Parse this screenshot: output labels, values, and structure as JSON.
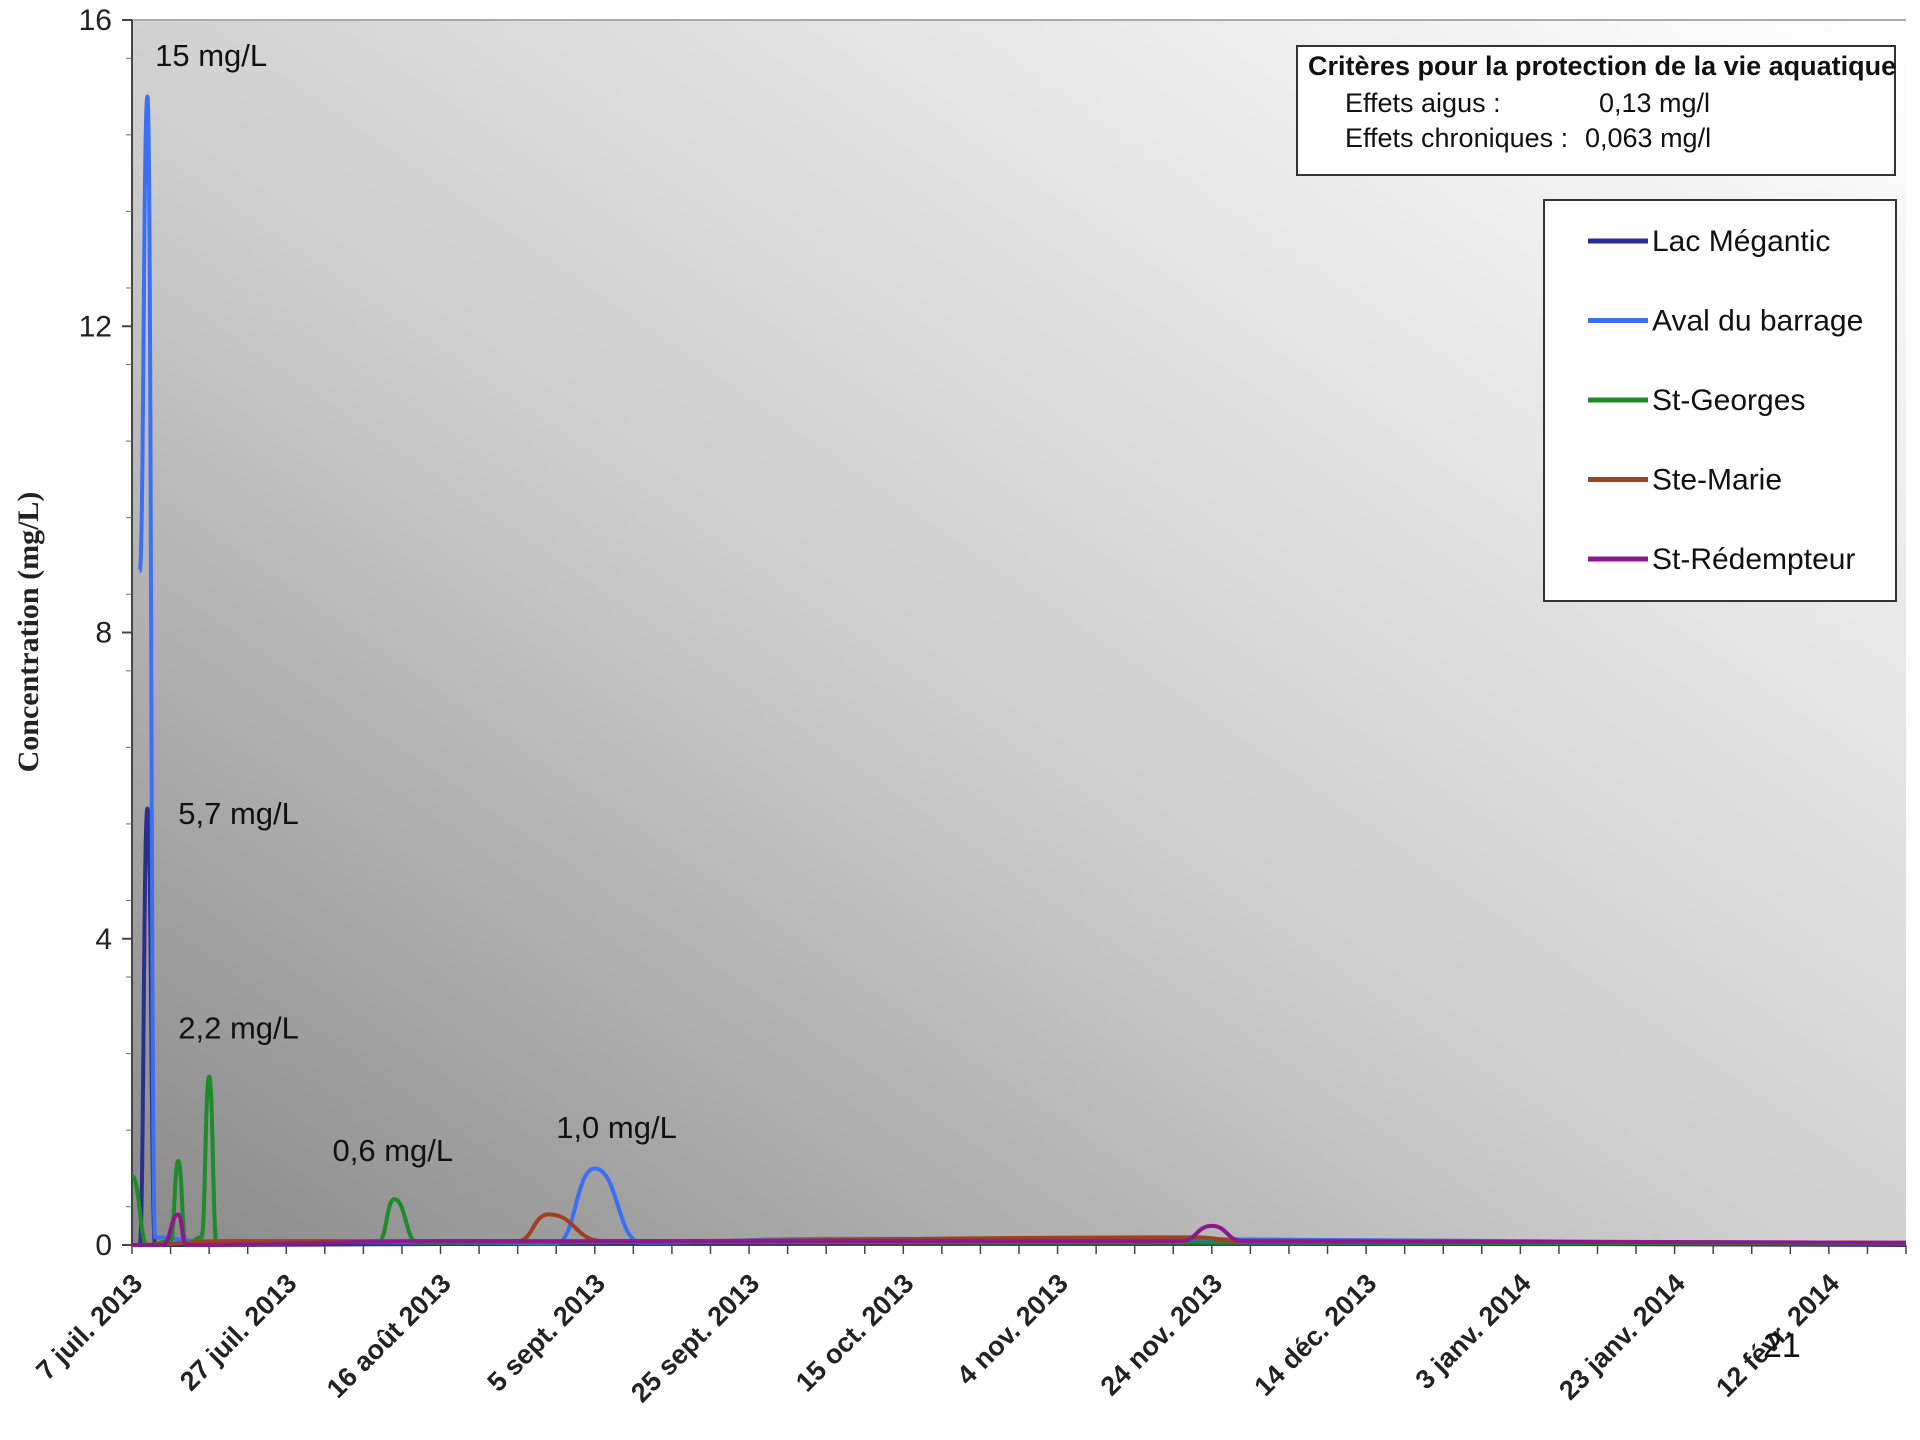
{
  "chart_data": {
    "type": "line",
    "ylabel": "Concentration (mg/L)",
    "xlabel": "",
    "ylim": [
      0,
      16
    ],
    "y_ticks": [
      0,
      4,
      8,
      12,
      16
    ],
    "xlim": [
      "2013-07-07",
      "2014-02-22"
    ],
    "x_ticks": [
      {
        "date": "2013-07-07",
        "label": "7 juil. 2013"
      },
      {
        "date": "2013-07-27",
        "label": "27 juil. 2013"
      },
      {
        "date": "2013-08-16",
        "label": "16 août 2013"
      },
      {
        "date": "2013-09-05",
        "label": "5 sept. 2013"
      },
      {
        "date": "2013-09-25",
        "label": "25 sept. 2013"
      },
      {
        "date": "2013-10-15",
        "label": "15 oct. 2013"
      },
      {
        "date": "2013-11-04",
        "label": "4 nov. 2013"
      },
      {
        "date": "2013-11-24",
        "label": "24 nov. 2013"
      },
      {
        "date": "2013-12-14",
        "label": "14 déc. 2013"
      },
      {
        "date": "2014-01-03",
        "label": "3 janv. 2014"
      },
      {
        "date": "2014-01-23",
        "label": "23 janv. 2014"
      },
      {
        "date": "2014-02-12",
        "label": "12 févr. 2014"
      }
    ],
    "grid": false,
    "legend_position": "top-right",
    "series": [
      {
        "name": "Lac Mégantic",
        "color": "#2b2f8c",
        "points": [
          [
            "2013-07-07",
            0
          ],
          [
            "2013-07-08",
            0
          ],
          [
            "2013-07-09",
            5.7
          ],
          [
            "2013-07-10",
            0
          ],
          [
            "2013-07-20",
            0
          ],
          [
            "2013-11-04",
            0.05
          ],
          [
            "2013-11-20",
            0.03
          ],
          [
            "2014-02-22",
            0
          ]
        ]
      },
      {
        "name": "Aval du barrage",
        "color": "#3d6ff2",
        "points": [
          [
            "2013-07-08",
            8.8
          ],
          [
            "2013-07-09",
            15
          ],
          [
            "2013-07-10",
            0.1
          ],
          [
            "2013-07-16",
            0.05
          ],
          [
            "2013-08-20",
            0.03
          ],
          [
            "2013-08-31",
            0.02
          ],
          [
            "2013-09-05",
            1.0
          ],
          [
            "2013-09-11",
            0.03
          ],
          [
            "2013-10-05",
            0.08
          ],
          [
            "2013-11-15",
            0.08
          ],
          [
            "2014-02-22",
            0.02
          ]
        ]
      },
      {
        "name": "St-Georges",
        "color": "#1f8a2a",
        "points": [
          [
            "2013-07-07",
            0.9
          ],
          [
            "2013-07-09",
            0
          ],
          [
            "2013-07-12",
            0.05
          ],
          [
            "2013-07-13",
            1.1
          ],
          [
            "2013-07-14",
            0
          ],
          [
            "2013-07-16",
            0.1
          ],
          [
            "2013-07-17",
            2.2
          ],
          [
            "2013-07-18",
            0
          ],
          [
            "2013-08-08",
            0.05
          ],
          [
            "2013-08-10",
            0.6
          ],
          [
            "2013-08-13",
            0.03
          ],
          [
            "2013-09-20",
            0.04
          ],
          [
            "2014-02-22",
            0.02
          ]
        ]
      },
      {
        "name": "Ste-Marie",
        "color": "#a0401e",
        "points": [
          [
            "2013-07-07",
            0
          ],
          [
            "2013-07-20",
            0.05
          ],
          [
            "2013-08-22",
            0.05
          ],
          [
            "2013-08-26",
            0.05
          ],
          [
            "2013-08-30",
            0.4
          ],
          [
            "2013-09-06",
            0.05
          ],
          [
            "2013-11-22",
            0.1
          ],
          [
            "2013-11-28",
            0.05
          ],
          [
            "2014-02-22",
            0.03
          ]
        ]
      },
      {
        "name": "St-Rédempteur",
        "color": "#8a1a8c",
        "points": [
          [
            "2013-07-07",
            0
          ],
          [
            "2013-07-11",
            0
          ],
          [
            "2013-07-13",
            0.4
          ],
          [
            "2013-07-14",
            0
          ],
          [
            "2013-08-16",
            0.05
          ],
          [
            "2013-11-20",
            0.05
          ],
          [
            "2013-11-24",
            0.25
          ],
          [
            "2013-11-28",
            0.05
          ],
          [
            "2014-02-22",
            0.03
          ]
        ]
      }
    ],
    "annotations": [
      {
        "text": "15 mg/L",
        "x": "2013-07-10",
        "y": 15.4
      },
      {
        "text": "5,7 mg/L",
        "x": "2013-07-13",
        "y": 5.5
      },
      {
        "text": "2,2 mg/L",
        "x": "2013-07-13",
        "y": 2.7
      },
      {
        "text": "0,6 mg/L",
        "x": "2013-08-02",
        "y": 1.1
      },
      {
        "text": "1,0 mg/L",
        "x": "2013-08-31",
        "y": 1.4
      }
    ]
  },
  "criteria": {
    "title": "Critères pour la protection de la vie aquatique",
    "rows": [
      {
        "label": "Effets aigus :",
        "value": "0,13 mg/l"
      },
      {
        "label": "Effets chroniques :",
        "value": "0,063 mg/l"
      }
    ]
  },
  "page_number": "21"
}
